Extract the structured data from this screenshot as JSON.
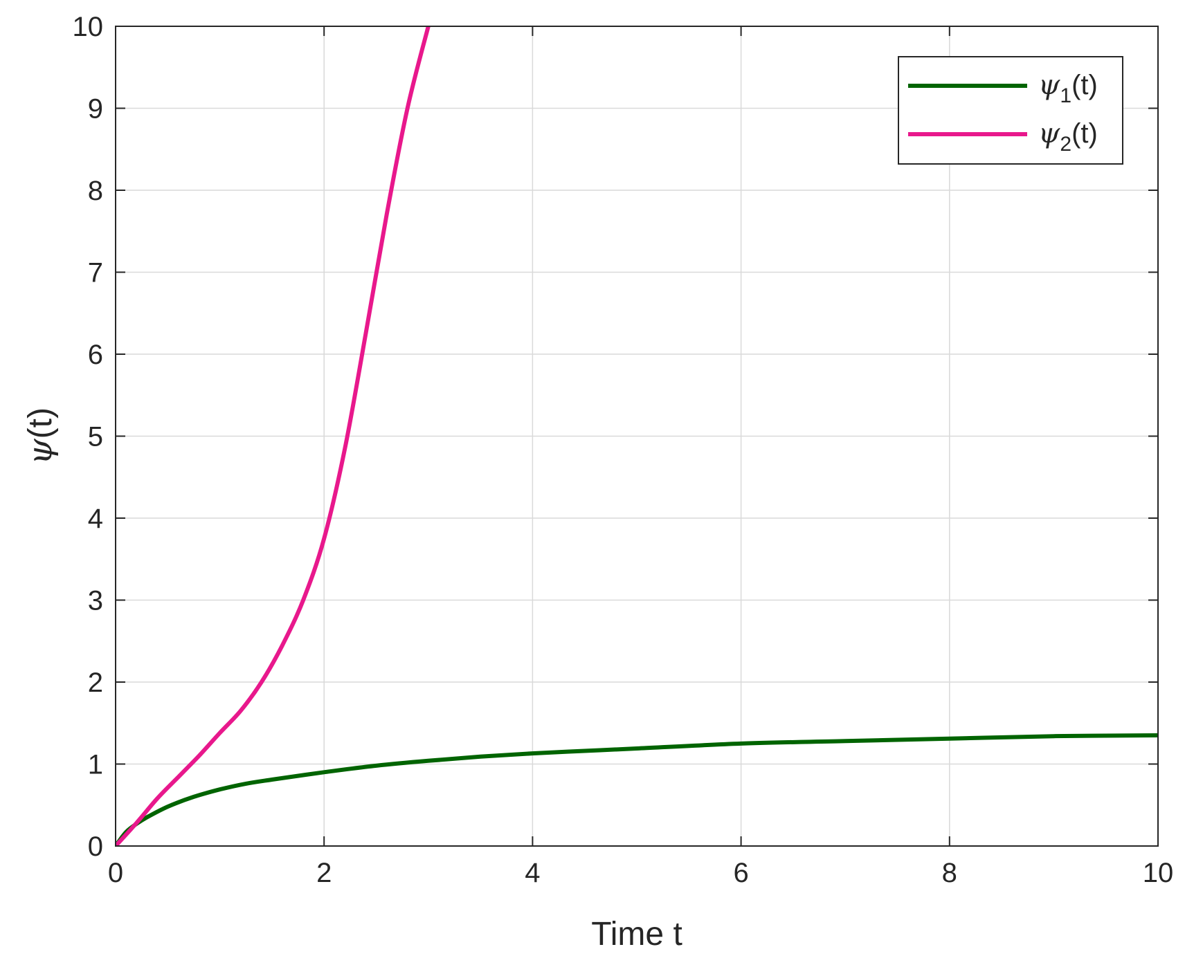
{
  "chart_data": {
    "type": "line",
    "title": "",
    "xlabel": "Time t",
    "ylabel": {
      "symbol": "ψ",
      "suffix": "(t)"
    },
    "xlim": [
      0,
      10
    ],
    "ylim": [
      0,
      10
    ],
    "xticks": [
      0,
      2,
      4,
      6,
      8,
      10
    ],
    "yticks": [
      0,
      1,
      2,
      3,
      4,
      5,
      6,
      7,
      8,
      9,
      10
    ],
    "grid": true,
    "legend_position": "top-right",
    "series": [
      {
        "name": {
          "symbol": "ψ",
          "sub": "1",
          "suffix": "(t)"
        },
        "color": "#006400",
        "x": [
          0,
          0.1,
          0.2,
          0.3,
          0.5,
          0.75,
          1.0,
          1.25,
          1.5,
          2.0,
          2.5,
          3.0,
          3.5,
          4.0,
          4.5,
          5.0,
          6.0,
          7.0,
          8.0,
          9.0,
          10.0
        ],
        "y": [
          0,
          0.17,
          0.27,
          0.35,
          0.48,
          0.6,
          0.69,
          0.76,
          0.81,
          0.9,
          0.98,
          1.04,
          1.09,
          1.13,
          1.16,
          1.19,
          1.25,
          1.28,
          1.31,
          1.34,
          1.35
        ]
      },
      {
        "name": {
          "symbol": "ψ",
          "sub": "2",
          "suffix": "(t)"
        },
        "color": "#E8188C",
        "x": [
          0,
          0.2,
          0.4,
          0.6,
          0.8,
          1.0,
          1.2,
          1.4,
          1.6,
          1.8,
          2.0,
          2.2,
          2.4,
          2.6,
          2.8,
          3.0
        ],
        "y": [
          0,
          0.28,
          0.58,
          0.84,
          1.1,
          1.38,
          1.65,
          2.0,
          2.45,
          3.0,
          3.75,
          4.85,
          6.25,
          7.7,
          9.0,
          10.0
        ]
      }
    ]
  }
}
